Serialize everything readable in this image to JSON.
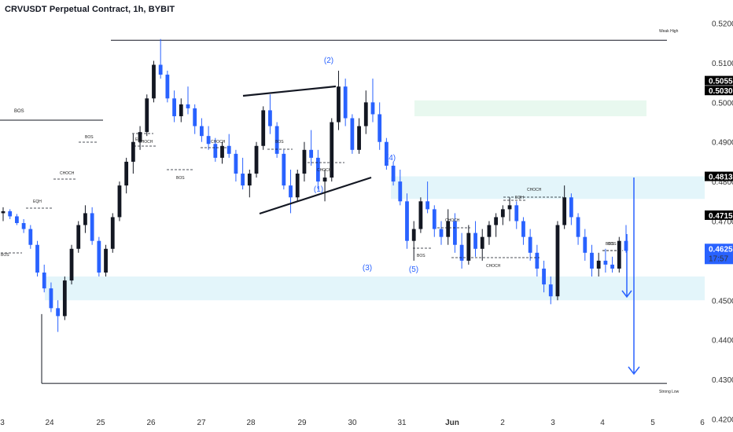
{
  "title": "CRVUSDT Perpetual Contract, 1h, BYBIT",
  "colors": {
    "background": "#ffffff",
    "up_candle": "#131722",
    "down_candle": "#2962ff",
    "zone_fill": "#e3f5fa",
    "supply_zone_fill": "#e8f8ef",
    "arrow": "#2962ff",
    "tag_dark": "#000000",
    "tag_blue": "#2962ff"
  },
  "chart_data": {
    "type": "candlestick",
    "title": "CRVUSDT Perpetual Contract, 1h, BYBIT",
    "y_axis": {
      "ticks": [
        "0.5200",
        "0.5100",
        "0.5000",
        "0.4900",
        "0.4800",
        "0.4700",
        "0.4500",
        "0.4400",
        "0.4300",
        "0.4200"
      ],
      "range": [
        0.4185,
        0.5215
      ]
    },
    "x_axis": {
      "ticks": [
        "3",
        "24",
        "25",
        "26",
        "27",
        "28",
        "29",
        "30",
        "31",
        "Jun",
        "2",
        "3",
        "4",
        "5",
        "6"
      ]
    },
    "price_tags": [
      {
        "label": "0.5055",
        "value": 0.5055,
        "style": "dark"
      },
      {
        "label": "0.5030",
        "value": 0.503,
        "style": "dark"
      },
      {
        "label": "0.4813",
        "value": 0.4813,
        "style": "dark"
      },
      {
        "label": "0.4715",
        "value": 0.4715,
        "style": "dark"
      },
      {
        "label": "0.4625",
        "sub": "17:57",
        "value": 0.4625,
        "style": "blue"
      }
    ],
    "levels": [
      {
        "label": "Weak High",
        "value": 0.5157
      },
      {
        "label": "Strong Low",
        "value": 0.429
      },
      {
        "label": "BOS",
        "value": 0.4955
      }
    ],
    "zones": [
      {
        "name": "supply",
        "from": 0.4965,
        "to": 0.5005
      },
      {
        "name": "upper-demand",
        "from": 0.4756,
        "to": 0.4813
      },
      {
        "name": "lower-demand",
        "from": 0.45,
        "to": 0.456
      }
    ],
    "annotations": [
      {
        "text": "BOS"
      },
      {
        "text": "EQH"
      },
      {
        "text": "CHOCH"
      },
      {
        "text": "BOS"
      },
      {
        "text": "EQL"
      },
      {
        "text": "CHOCH"
      },
      {
        "text": "BOS"
      },
      {
        "text": "CHOCH"
      },
      {
        "text": "BOS"
      },
      {
        "text": "CHOCH"
      },
      {
        "text": "BOS"
      },
      {
        "text": "CHOCH"
      },
      {
        "text": "CHOCH"
      },
      {
        "text": "CHOCH"
      },
      {
        "text": "EQH"
      },
      {
        "text": "BOS"
      },
      {
        "text": "BOS"
      }
    ],
    "waves": [
      "(1)",
      "(2)",
      "(3)",
      "(4)",
      "(5)"
    ],
    "ohlc": [
      [
        0.472,
        0.4735,
        0.47,
        0.4725
      ],
      [
        0.4725,
        0.473,
        0.4705,
        0.4712
      ],
      [
        0.4712,
        0.4718,
        0.469,
        0.4695
      ],
      [
        0.4695,
        0.4705,
        0.467,
        0.468
      ],
      [
        0.468,
        0.469,
        0.463,
        0.464
      ],
      [
        0.464,
        0.465,
        0.456,
        0.457
      ],
      [
        0.457,
        0.459,
        0.452,
        0.453
      ],
      [
        0.453,
        0.4545,
        0.447,
        0.448
      ],
      [
        0.448,
        0.45,
        0.442,
        0.446
      ],
      [
        0.446,
        0.456,
        0.445,
        0.455
      ],
      [
        0.455,
        0.464,
        0.454,
        0.463
      ],
      [
        0.463,
        0.47,
        0.462,
        0.469
      ],
      [
        0.469,
        0.474,
        0.467,
        0.472
      ],
      [
        0.472,
        0.4735,
        0.464,
        0.465
      ],
      [
        0.465,
        0.466,
        0.456,
        0.457
      ],
      [
        0.457,
        0.464,
        0.456,
        0.463
      ],
      [
        0.463,
        0.472,
        0.462,
        0.471
      ],
      [
        0.471,
        0.48,
        0.47,
        0.479
      ],
      [
        0.479,
        0.486,
        0.477,
        0.485
      ],
      [
        0.485,
        0.492,
        0.482,
        0.49
      ],
      [
        0.49,
        0.494,
        0.488,
        0.4925
      ],
      [
        0.4925,
        0.502,
        0.4915,
        0.501
      ],
      [
        0.501,
        0.5105,
        0.5,
        0.5095
      ],
      [
        0.5095,
        0.516,
        0.506,
        0.507
      ],
      [
        0.507,
        0.508,
        0.5,
        0.501
      ],
      [
        0.501,
        0.503,
        0.495,
        0.4965
      ],
      [
        0.4965,
        0.501,
        0.495,
        0.4995
      ],
      [
        0.4995,
        0.504,
        0.497,
        0.4985
      ],
      [
        0.4985,
        0.4995,
        0.492,
        0.494
      ],
      [
        0.494,
        0.496,
        0.49,
        0.4915
      ],
      [
        0.4915,
        0.494,
        0.488,
        0.4895
      ],
      [
        0.4895,
        0.491,
        0.485,
        0.486
      ],
      [
        0.486,
        0.49,
        0.4845,
        0.489
      ],
      [
        0.489,
        0.492,
        0.486,
        0.487
      ],
      [
        0.487,
        0.488,
        0.48,
        0.482
      ],
      [
        0.482,
        0.486,
        0.478,
        0.479
      ],
      [
        0.479,
        0.483,
        0.476,
        0.482
      ],
      [
        0.482,
        0.49,
        0.481,
        0.489
      ],
      [
        0.489,
        0.499,
        0.488,
        0.498
      ],
      [
        0.498,
        0.502,
        0.492,
        0.494
      ],
      [
        0.494,
        0.495,
        0.486,
        0.487
      ],
      [
        0.487,
        0.488,
        0.478,
        0.479
      ],
      [
        0.479,
        0.483,
        0.472,
        0.476
      ],
      [
        0.476,
        0.483,
        0.475,
        0.482
      ],
      [
        0.482,
        0.49,
        0.48,
        0.488
      ],
      [
        0.488,
        0.493,
        0.484,
        0.486
      ],
      [
        0.486,
        0.488,
        0.478,
        0.48
      ],
      [
        0.48,
        0.483,
        0.475,
        0.481
      ],
      [
        0.481,
        0.496,
        0.48,
        0.495
      ],
      [
        0.495,
        0.508,
        0.493,
        0.504
      ],
      [
        0.504,
        0.506,
        0.494,
        0.496
      ],
      [
        0.496,
        0.497,
        0.487,
        0.488
      ],
      [
        0.488,
        0.496,
        0.487,
        0.494
      ],
      [
        0.494,
        0.503,
        0.492,
        0.5
      ],
      [
        0.5,
        0.506,
        0.495,
        0.497
      ],
      [
        0.497,
        0.5,
        0.488,
        0.49
      ],
      [
        0.49,
        0.491,
        0.483,
        0.484
      ],
      [
        0.484,
        0.485,
        0.479,
        0.48
      ],
      [
        0.48,
        0.483,
        0.474,
        0.475
      ],
      [
        0.475,
        0.477,
        0.463,
        0.465
      ],
      [
        0.465,
        0.47,
        0.46,
        0.468
      ],
      [
        0.468,
        0.476,
        0.467,
        0.475
      ],
      [
        0.475,
        0.48,
        0.472,
        0.473
      ],
      [
        0.473,
        0.474,
        0.466,
        0.468
      ],
      [
        0.468,
        0.47,
        0.464,
        0.466
      ],
      [
        0.466,
        0.473,
        0.464,
        0.47
      ],
      [
        0.47,
        0.472,
        0.462,
        0.464
      ],
      [
        0.464,
        0.467,
        0.458,
        0.46
      ],
      [
        0.46,
        0.469,
        0.459,
        0.467
      ],
      [
        0.467,
        0.47,
        0.461,
        0.463
      ],
      [
        0.463,
        0.468,
        0.46,
        0.466
      ],
      [
        0.466,
        0.47,
        0.464,
        0.469
      ],
      [
        0.469,
        0.472,
        0.466,
        0.471
      ],
      [
        0.471,
        0.474,
        0.469,
        0.473
      ],
      [
        0.473,
        0.476,
        0.47,
        0.474
      ],
      [
        0.474,
        0.475,
        0.468,
        0.47
      ],
      [
        0.47,
        0.471,
        0.464,
        0.466
      ],
      [
        0.466,
        0.468,
        0.46,
        0.462
      ],
      [
        0.462,
        0.464,
        0.456,
        0.458
      ],
      [
        0.458,
        0.46,
        0.452,
        0.454
      ],
      [
        0.454,
        0.456,
        0.449,
        0.451
      ],
      [
        0.451,
        0.47,
        0.45,
        0.469
      ],
      [
        0.469,
        0.479,
        0.468,
        0.476
      ],
      [
        0.476,
        0.477,
        0.469,
        0.471
      ],
      [
        0.471,
        0.472,
        0.464,
        0.466
      ],
      [
        0.466,
        0.468,
        0.46,
        0.462
      ],
      [
        0.462,
        0.464,
        0.456,
        0.458
      ],
      [
        0.458,
        0.462,
        0.456,
        0.46
      ],
      [
        0.46,
        0.463,
        0.457,
        0.459
      ],
      [
        0.459,
        0.461,
        0.457,
        0.458
      ],
      [
        0.458,
        0.466,
        0.457,
        0.465
      ],
      [
        0.465,
        0.469,
        0.462,
        0.4625
      ]
    ]
  }
}
